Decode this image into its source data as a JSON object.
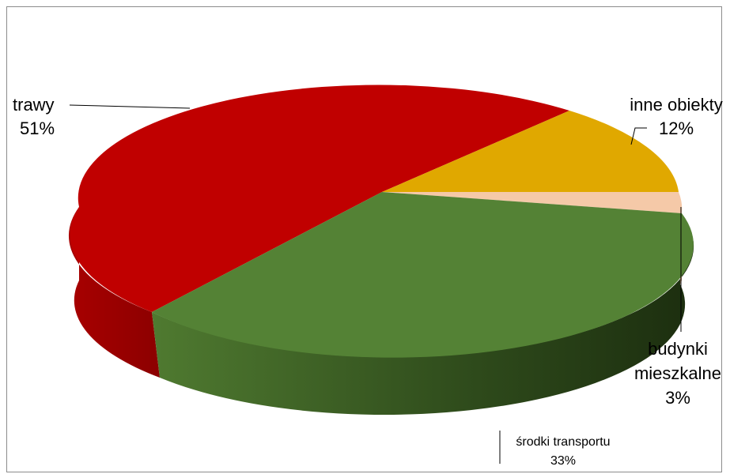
{
  "chart_data": {
    "type": "pie",
    "style": "3d",
    "slices": [
      {
        "label": "trawy",
        "value": 51,
        "percent_label": "51%",
        "color": "#c00000"
      },
      {
        "label": "inne obiekty",
        "value": 12,
        "percent_label": "12%",
        "color": "#e0a800"
      },
      {
        "label": "budynki mieszkalne",
        "label_lines": [
          "budynki",
          "mieszkalne"
        ],
        "value": 3,
        "percent_label": "3%",
        "color": "#f5c9a8"
      },
      {
        "label": "środki transportu",
        "value": 33,
        "percent_label": "33%",
        "color": "#548235"
      }
    ],
    "legend": false
  }
}
